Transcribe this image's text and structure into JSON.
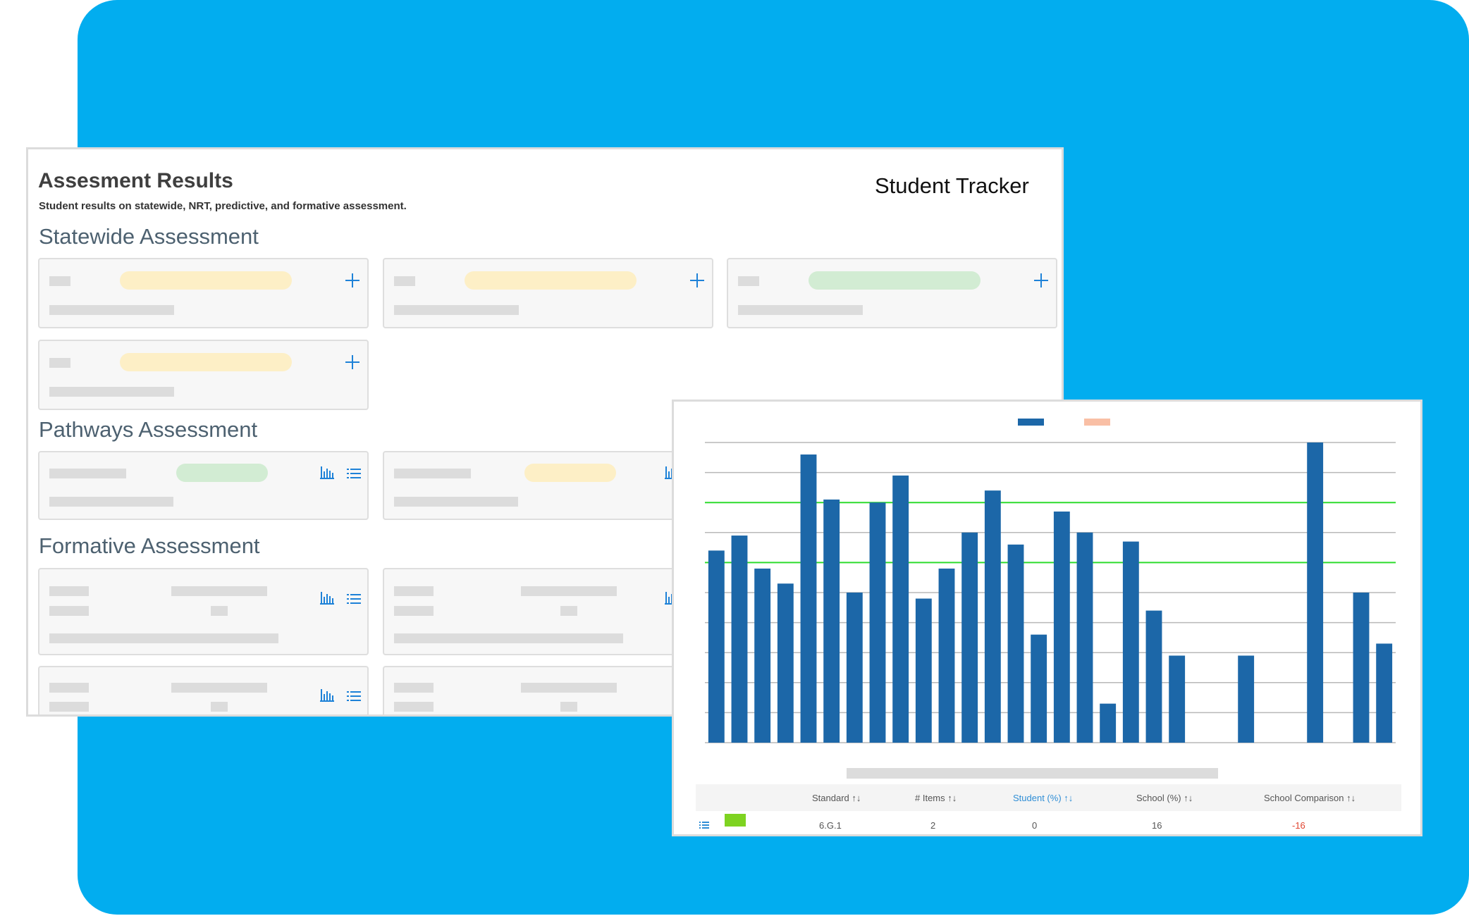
{
  "header": {
    "title": "Assesment Results",
    "subtitle": "Student results on statewide, NRT, predictive, and formative assessment.",
    "tracker": "Student Tracker"
  },
  "sections": {
    "statewide": "Statewide Assessment",
    "pathways": "Pathways Assessment",
    "formative": "Formative Assessment"
  },
  "colors": {
    "background": "#02adef",
    "bar": "#1c67a8",
    "legend_secondary": "#f9bfa5",
    "threshold_line": "#2ddc2d",
    "swatch": "#7ed321",
    "accent": "#2f8ed6",
    "negative": "#e0442f"
  },
  "chart_data": {
    "type": "bar",
    "ylim": [
      0,
      100
    ],
    "grid": true,
    "gridline_values": [
      10,
      20,
      30,
      40,
      50,
      60,
      70,
      80,
      90,
      100
    ],
    "threshold_values": [
      60,
      80
    ],
    "legend": {
      "position": "top-center"
    },
    "series": [
      {
        "values": [
          64,
          69,
          58,
          53,
          96,
          81,
          50,
          80,
          89,
          48,
          58,
          70,
          84,
          66,
          36,
          77,
          70,
          13,
          67,
          44,
          29,
          0,
          0,
          29,
          0,
          0,
          100,
          0,
          50,
          33
        ]
      }
    ]
  },
  "table": {
    "headers": [
      "Standard",
      "# Items",
      "Student (%)",
      "School (%)",
      "School Comparison"
    ],
    "sort_icon": "↑↓",
    "row": {
      "standard": "6.G.1",
      "items": "2",
      "student": "0",
      "school": "16",
      "comparison": "-16"
    }
  },
  "icons": {
    "expand": "plus-icon",
    "chart": "bar-chart-icon",
    "list": "list-icon",
    "row_menu": "list-icon"
  }
}
